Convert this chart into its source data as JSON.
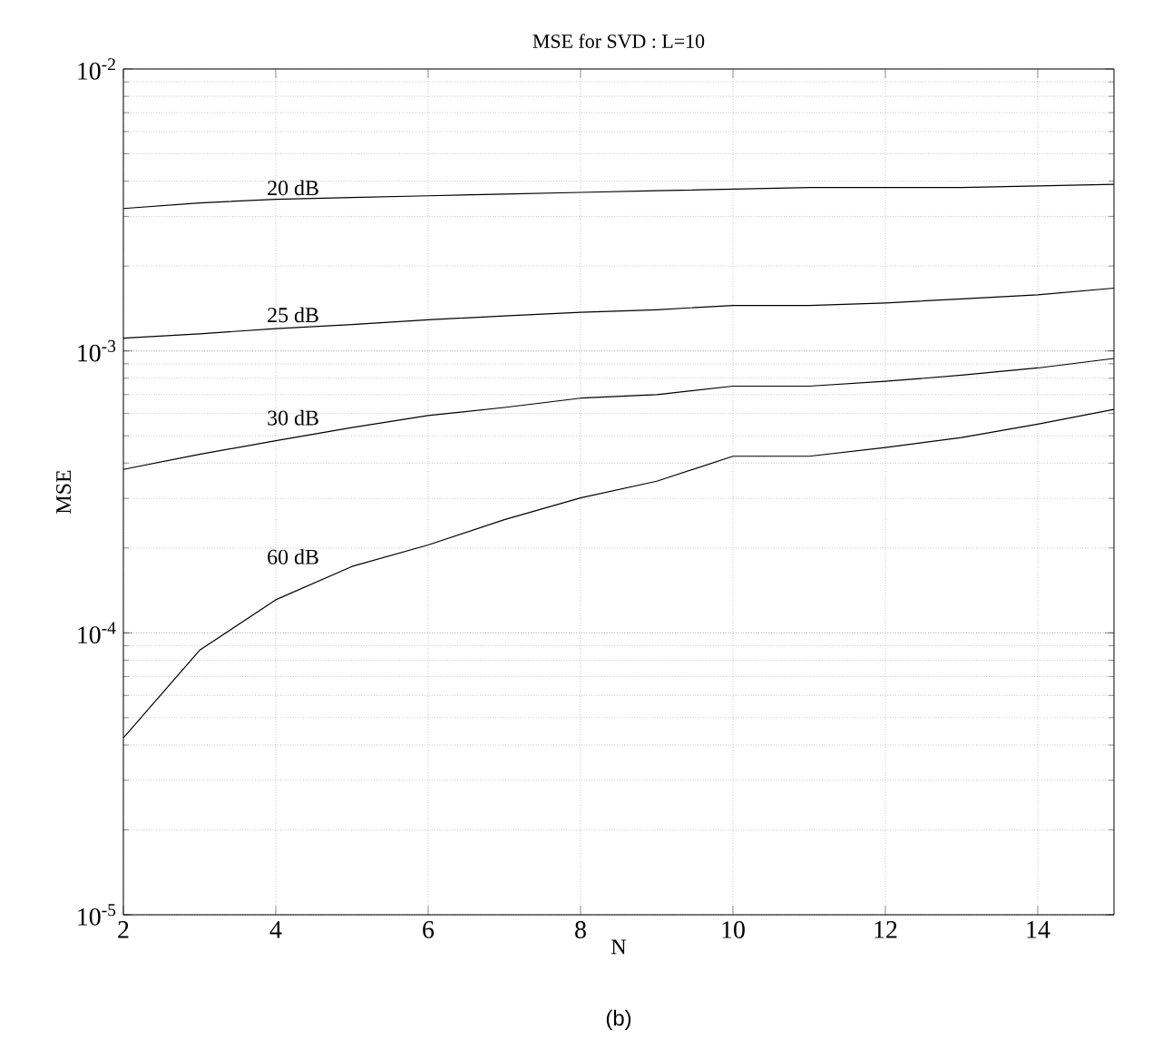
{
  "chart_data": {
    "type": "line",
    "title": "MSE for SVD : L=10",
    "xlabel": "N",
    "ylabel": "MSE",
    "x": [
      2,
      3,
      4,
      5,
      6,
      7,
      8,
      9,
      10,
      11,
      12,
      13,
      14,
      15
    ],
    "series": [
      {
        "name": "20 dB",
        "color": "#000000",
        "values": [
          0.0032,
          0.00335,
          0.00345,
          0.0035,
          0.00355,
          0.0036,
          0.00365,
          0.0037,
          0.00375,
          0.0038,
          0.0038,
          0.0038,
          0.00385,
          0.0039
        ]
      },
      {
        "name": "25 dB",
        "color": "#000000",
        "values": [
          0.00111,
          0.00115,
          0.0012,
          0.00124,
          0.00129,
          0.00133,
          0.00137,
          0.0014,
          0.00145,
          0.00145,
          0.00148,
          0.00153,
          0.00158,
          0.00167
        ]
      },
      {
        "name": "30 dB",
        "color": "#000000",
        "values": [
          0.00038,
          0.00043,
          0.00048,
          0.000535,
          0.00059,
          0.00063,
          0.00068,
          0.0007,
          0.00075,
          0.00075,
          0.00078,
          0.00082,
          0.00087,
          0.00094
        ]
      },
      {
        "name": "60 dB",
        "color": "#000000",
        "values": [
          4.24e-05,
          8.67e-05,
          0.000131,
          0.000172,
          0.000205,
          0.000252,
          0.000301,
          0.000345,
          0.000423,
          0.000423,
          0.000454,
          0.000493,
          0.00055,
          0.00062
        ]
      }
    ],
    "xlim": [
      2,
      15
    ],
    "xticks": [
      2,
      4,
      6,
      8,
      10,
      12,
      14
    ],
    "ylim": [
      1e-05,
      0.01
    ],
    "yticks": [
      {
        "value": 1e-05,
        "label": "10$^{-5}$"
      },
      {
        "value": 0.0001,
        "label": "10$^{-4}$"
      },
      {
        "value": 0.001,
        "label": "10$^{-3}$"
      },
      {
        "value": 0.01,
        "label": "10$^{-2}$"
      }
    ],
    "log": "y",
    "grid": true,
    "legend": false,
    "marker": "none",
    "line_style": "solid",
    "annotations": [
      "(b)"
    ]
  }
}
